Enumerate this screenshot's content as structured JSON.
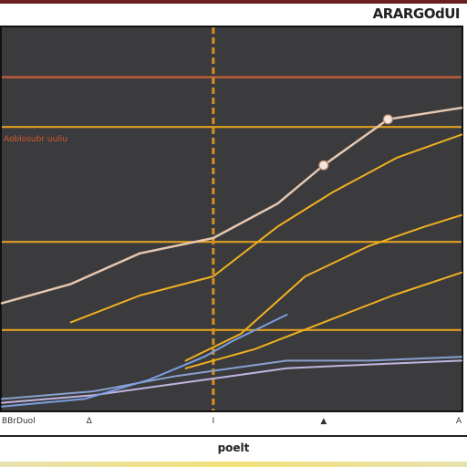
{
  "header": {
    "title": "ARARGOdUI"
  },
  "chart_data": {
    "type": "line",
    "title": "",
    "xlabel": "poelt",
    "ylabel": "",
    "xlim": [
      0,
      100
    ],
    "ylim": [
      0,
      100
    ],
    "grid": false,
    "legend": "none",
    "background": "#3b3b3d",
    "hlines": [
      {
        "y": 87,
        "color": "#c8603a"
      },
      {
        "y": 74,
        "color": "#e0a020"
      },
      {
        "y": 44,
        "color": "#e0a020"
      },
      {
        "y": 21,
        "color": "#e0a020"
      }
    ],
    "vline": {
      "x": 46,
      "color": "#d89020"
    },
    "annotation": {
      "text": "Aoblosubr uuliu",
      "y": 71,
      "color": "#d8582c"
    },
    "x_tick_labels": [
      {
        "x": 0,
        "text": "BBrDuol"
      },
      {
        "x": 19,
        "text": "∆"
      },
      {
        "x": 46,
        "text": "I"
      },
      {
        "x": 70,
        "text": "▲"
      },
      {
        "x": 100,
        "text": "A"
      }
    ],
    "series": [
      {
        "color": "#e6c7b0",
        "width": 2.5,
        "x": [
          0,
          15,
          30,
          46,
          60,
          70,
          84,
          100
        ],
        "y": [
          28,
          33,
          41,
          45,
          54,
          64,
          76,
          79
        ]
      },
      {
        "color": "#f0b020",
        "width": 2,
        "x": [
          15,
          30,
          46,
          60,
          72,
          86,
          100
        ],
        "y": [
          23,
          30,
          35,
          48,
          57,
          66,
          72
        ]
      },
      {
        "color": "#f0b020",
        "width": 2,
        "x": [
          40,
          52,
          66,
          80,
          92,
          100
        ],
        "y": [
          13,
          20,
          35,
          43,
          48,
          51
        ]
      },
      {
        "color": "#f0b020",
        "width": 2,
        "x": [
          40,
          55,
          70,
          85,
          100
        ],
        "y": [
          11,
          16,
          23,
          30,
          36
        ]
      },
      {
        "color": "#8aa0d0",
        "width": 2,
        "x": [
          0,
          20,
          38,
          50,
          62,
          80,
          100
        ],
        "y": [
          3,
          5,
          9,
          11,
          13,
          13,
          14
        ]
      },
      {
        "color": "#c0b4e0",
        "width": 2,
        "x": [
          0,
          20,
          38,
          50,
          62,
          80,
          100
        ],
        "y": [
          2,
          4,
          7,
          9,
          11,
          12,
          13
        ]
      },
      {
        "color": "#7a9ee0",
        "width": 2,
        "x": [
          0,
          18,
          32,
          44,
          50,
          62
        ],
        "y": [
          1,
          3,
          8,
          14,
          18,
          25
        ]
      }
    ]
  }
}
